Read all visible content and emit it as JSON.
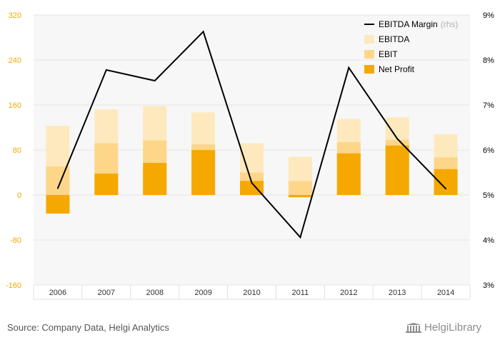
{
  "chart_data": {
    "type": "bar",
    "categories": [
      "2006",
      "2007",
      "2008",
      "2009",
      "2010",
      "2011",
      "2012",
      "2013",
      "2014"
    ],
    "series": [
      {
        "name": "EBITDA",
        "type": "bar",
        "axis": "left",
        "color": "#fde9bd",
        "values": [
          123,
          152,
          158,
          147,
          92,
          68,
          135,
          138,
          108
        ]
      },
      {
        "name": "EBIT",
        "type": "bar",
        "axis": "left",
        "color": "#fdd68a",
        "values": [
          51,
          92,
          97,
          90,
          40,
          25,
          94,
          98,
          67
        ]
      },
      {
        "name": "Net Profit",
        "type": "bar",
        "axis": "left",
        "color": "#f5a800",
        "values": [
          -33,
          38,
          57,
          80,
          25,
          -4,
          74,
          88,
          46
        ]
      },
      {
        "name": "EBITDA Margin",
        "type": "line",
        "axis": "right",
        "color": "#000000",
        "values": [
          5.15,
          7.78,
          7.54,
          8.63,
          5.27,
          4.06,
          7.83,
          6.25,
          5.14
        ]
      }
    ],
    "y_left": {
      "lim": [
        -160,
        320
      ],
      "ticks": [
        -160,
        -80,
        0,
        80,
        160,
        240,
        320
      ]
    },
    "y_right": {
      "lim": [
        3,
        9
      ],
      "ticks": [
        "3%",
        "4%",
        "5%",
        "6%",
        "7%",
        "8%",
        "9%"
      ]
    },
    "legend": {
      "placement": "top-right",
      "items": [
        {
          "label": "EBITDA Margin",
          "suffix": "(rhs)",
          "kind": "line",
          "color": "#000000"
        },
        {
          "label": "EBITDA",
          "kind": "box",
          "color": "#fde9bd"
        },
        {
          "label": "EBIT",
          "kind": "box",
          "color": "#fdd68a"
        },
        {
          "label": "Net Profit",
          "kind": "box",
          "color": "#f5a800"
        }
      ]
    },
    "left_tick_color": "#f5a800",
    "grid": true
  },
  "footer": {
    "source": "Source: Company Data, Helgi Analytics",
    "logo": "HelgiLibrary"
  }
}
